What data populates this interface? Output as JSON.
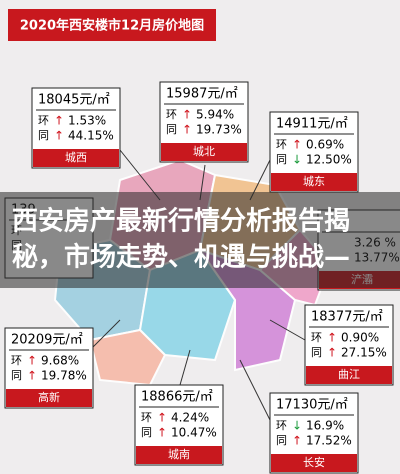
{
  "header": {
    "title": "2020年西安楼市12月房价地图"
  },
  "districts": [
    {
      "price": "18045元/㎡",
      "ring": {
        "label": "环",
        "arrow": "↑",
        "value": "1.53%"
      },
      "yoy": {
        "label": "同",
        "arrow": "↑",
        "value": "44.15%"
      },
      "name": "城西"
    },
    {
      "price": "15987元/㎡",
      "ring": {
        "label": "环",
        "arrow": "↑",
        "value": "5.94%"
      },
      "yoy": {
        "label": "同",
        "arrow": "↑",
        "value": "19.73%"
      },
      "name": "城北"
    },
    {
      "price": "14911元/㎡",
      "ring": {
        "label": "环",
        "arrow": "↑",
        "value": "0.69%"
      },
      "yoy": {
        "label": "同",
        "arrow": "↓",
        "value": "12.50%"
      },
      "name": "城东"
    },
    {
      "price": "139",
      "ring": {
        "label": "环"
      },
      "yoy": {
        "label": "同"
      }
    },
    {
      "ring": {
        "value": "3.26 %"
      },
      "yoy": {
        "value": "13.77%"
      },
      "name": "浐灞"
    },
    {
      "price": "20209元/㎡",
      "ring": {
        "label": "环",
        "arrow": "↑",
        "value": "9.68%"
      },
      "yoy": {
        "label": "同",
        "arrow": "↑",
        "value": "19.78%"
      },
      "name": "高新"
    },
    {
      "price": "18377元/㎡",
      "ring": {
        "label": "环",
        "arrow": "↑",
        "value": "0.90%"
      },
      "yoy": {
        "label": "同",
        "arrow": "↑",
        "value": "27.15%"
      },
      "name": "曲江"
    },
    {
      "price": "18866元/㎡",
      "ring": {
        "label": "环",
        "arrow": "↑",
        "value": "4.24%"
      },
      "yoy": {
        "label": "同",
        "arrow": "↑",
        "value": "10.47%"
      },
      "name": "城南"
    },
    {
      "price": "17130元/㎡",
      "ring": {
        "label": "环",
        "arrow": "↓",
        "value": "16.9%"
      },
      "yoy": {
        "label": "同",
        "arrow": "↑",
        "value": "17.52%"
      },
      "name": "长安"
    }
  ],
  "headline": {
    "lines": [
      "西安房产最新行情分析报告揭",
      "秘，市场走势、机遇与挑战—"
    ]
  }
}
